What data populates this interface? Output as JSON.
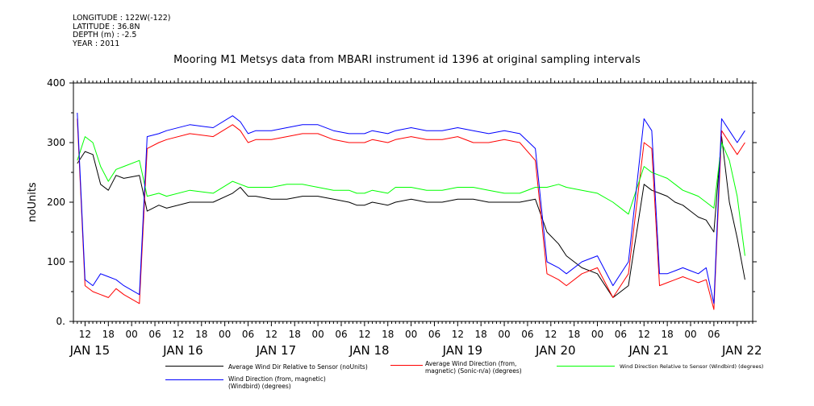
{
  "header": {
    "longitude": "LONGITUDE : 122W(-122)",
    "latitude": "LATITUDE : 36.8N",
    "depth": "DEPTH (m) : -2.5",
    "year": "YEAR : 2011"
  },
  "chart_data": {
    "type": "line",
    "title": "Mooring M1 Metsys data from MBARI instrument id 1396 at original sampling intervals",
    "ylabel": "noUnits",
    "xlabel": "",
    "ylim": [
      0,
      400
    ],
    "yticks": [
      0,
      100,
      200,
      300,
      400
    ],
    "ytick_labels": [
      "0.",
      "100",
      "200",
      "300",
      "400"
    ],
    "xlim_hours": [
      -3,
      172
    ],
    "hour_labels": [
      "12",
      "18",
      "00",
      "06",
      "12",
      "18",
      "00",
      "06",
      "12",
      "18",
      "00",
      "06",
      "12",
      "18",
      "00",
      "06",
      "12",
      "18",
      "00",
      "06",
      "12",
      "18",
      "00",
      "06",
      "12",
      "18",
      "00",
      "06"
    ],
    "day_labels": [
      "JAN 15",
      "JAN 16",
      "JAN 17",
      "JAN 18",
      "JAN 19",
      "JAN 20",
      "JAN 21",
      "JAN 22"
    ],
    "grid": false,
    "legend_position": "bottom",
    "series": [
      {
        "name": "Average Wind Dir Relative to Sensor (noUnits)",
        "color": "#000000",
        "x": [
          -2,
          0,
          2,
          4,
          6,
          8,
          10,
          14,
          16,
          19,
          21,
          27,
          33,
          38,
          40,
          42,
          44,
          48,
          52,
          56,
          60,
          64,
          68,
          70,
          72,
          74,
          78,
          80,
          84,
          88,
          92,
          96,
          100,
          104,
          108,
          112,
          116,
          119,
          122,
          124,
          128,
          132,
          136,
          140,
          144,
          146,
          148,
          150,
          152,
          154,
          156,
          158,
          160,
          162,
          164,
          166,
          168,
          170
        ],
        "y": [
          265,
          285,
          280,
          230,
          220,
          245,
          240,
          245,
          185,
          195,
          190,
          200,
          200,
          215,
          225,
          210,
          210,
          205,
          205,
          210,
          210,
          205,
          200,
          195,
          195,
          200,
          195,
          200,
          205,
          200,
          200,
          205,
          205,
          200,
          200,
          200,
          205,
          150,
          130,
          110,
          90,
          80,
          40,
          60,
          230,
          220,
          215,
          210,
          200,
          195,
          185,
          175,
          170,
          150,
          310,
          200,
          140,
          70
        ]
      },
      {
        "name": "Average Wind Direction (from, magnetic) (Sonic-n/a) (degrees)",
        "color": "#ff0000",
        "x": [
          -2,
          0,
          2,
          4,
          6,
          8,
          10,
          14,
          16,
          19,
          21,
          27,
          33,
          38,
          40,
          42,
          44,
          48,
          52,
          56,
          60,
          64,
          68,
          70,
          72,
          74,
          78,
          80,
          84,
          88,
          92,
          96,
          100,
          104,
          108,
          112,
          116,
          119,
          122,
          124,
          128,
          132,
          136,
          140,
          144,
          146,
          148,
          150,
          152,
          154,
          156,
          158,
          160,
          162,
          164,
          166,
          168,
          170
        ],
        "y": [
          340,
          60,
          50,
          45,
          40,
          55,
          45,
          30,
          290,
          300,
          305,
          315,
          310,
          330,
          320,
          300,
          305,
          305,
          310,
          315,
          315,
          305,
          300,
          300,
          300,
          305,
          300,
          305,
          310,
          305,
          305,
          310,
          300,
          300,
          305,
          300,
          270,
          80,
          70,
          60,
          80,
          90,
          40,
          80,
          300,
          290,
          60,
          65,
          70,
          75,
          70,
          65,
          70,
          20,
          320,
          300,
          280,
          300
        ]
      },
      {
        "name": "Wind Direction Relative to Sensor (Windbird) (degrees)",
        "color": "#00ff00",
        "x": [
          -2,
          0,
          2,
          4,
          6,
          8,
          10,
          14,
          16,
          19,
          21,
          27,
          33,
          38,
          40,
          42,
          44,
          48,
          52,
          56,
          60,
          64,
          68,
          70,
          72,
          74,
          78,
          80,
          84,
          88,
          92,
          96,
          100,
          104,
          108,
          112,
          116,
          119,
          122,
          124,
          128,
          132,
          136,
          140,
          144,
          146,
          148,
          150,
          152,
          154,
          156,
          158,
          160,
          162,
          164,
          166,
          168,
          170
        ],
        "y": [
          270,
          310,
          300,
          260,
          235,
          255,
          260,
          270,
          210,
          215,
          210,
          220,
          215,
          235,
          230,
          225,
          225,
          225,
          230,
          230,
          225,
          220,
          220,
          215,
          215,
          220,
          215,
          225,
          225,
          220,
          220,
          225,
          225,
          220,
          215,
          215,
          225,
          225,
          230,
          225,
          220,
          215,
          200,
          180,
          260,
          250,
          245,
          240,
          230,
          220,
          215,
          210,
          200,
          190,
          300,
          270,
          210,
          110
        ]
      },
      {
        "name": "Wind Direction (from, magnetic) (Windbird) (degrees)",
        "color": "#0000ff",
        "x": [
          -2,
          0,
          2,
          4,
          6,
          8,
          10,
          14,
          16,
          19,
          21,
          27,
          33,
          38,
          40,
          42,
          44,
          48,
          52,
          56,
          60,
          64,
          68,
          70,
          72,
          74,
          78,
          80,
          84,
          88,
          92,
          96,
          100,
          104,
          108,
          112,
          116,
          119,
          122,
          124,
          128,
          132,
          136,
          140,
          144,
          146,
          148,
          150,
          152,
          154,
          156,
          158,
          160,
          162,
          164,
          166,
          168,
          170
        ],
        "y": [
          350,
          70,
          60,
          80,
          75,
          70,
          60,
          45,
          310,
          315,
          320,
          330,
          325,
          345,
          335,
          315,
          320,
          320,
          325,
          330,
          330,
          320,
          315,
          315,
          315,
          320,
          315,
          320,
          325,
          320,
          320,
          325,
          320,
          315,
          320,
          315,
          290,
          100,
          90,
          80,
          100,
          110,
          60,
          100,
          340,
          320,
          80,
          80,
          85,
          90,
          85,
          80,
          90,
          30,
          340,
          320,
          300,
          320
        ]
      }
    ]
  }
}
